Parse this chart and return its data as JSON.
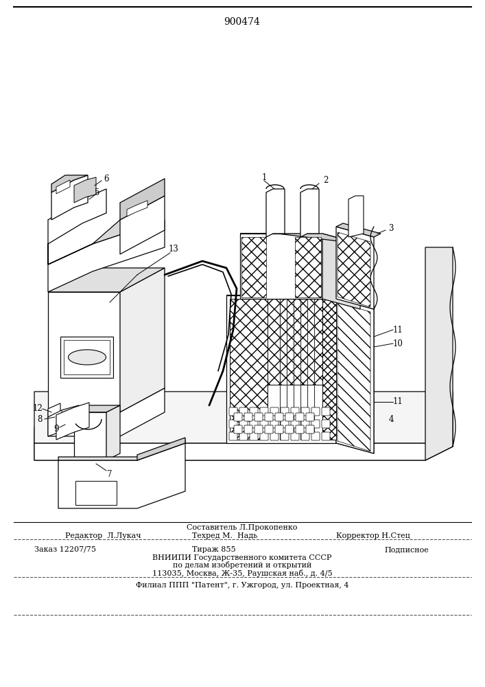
{
  "patent_number": "900474",
  "bg": "#ffffff",
  "lc": "#000000",
  "editor_line1": "Составитель Л.Прокопенко",
  "editor_line2_left": "Редактор  Л.Лукач",
  "editor_line2_mid": "Техред М.  Надь",
  "editor_line2_right": "Корректор Н.Стец",
  "order_left": "Заказ 12207/75",
  "order_mid": "Тираж 855",
  "order_right": "Подписное",
  "vnipi_line1": "ВНИИПИ Государственного комитета СССР",
  "vnipi_line2": "по делам изобретений и открытий",
  "vnipi_line3": "113035, Москва, Ж-35, Раушская наб., д. 4/5",
  "filial_line": "Филиал ППП \"Патент\", г. Ужгород, ул. Проектная, 4"
}
